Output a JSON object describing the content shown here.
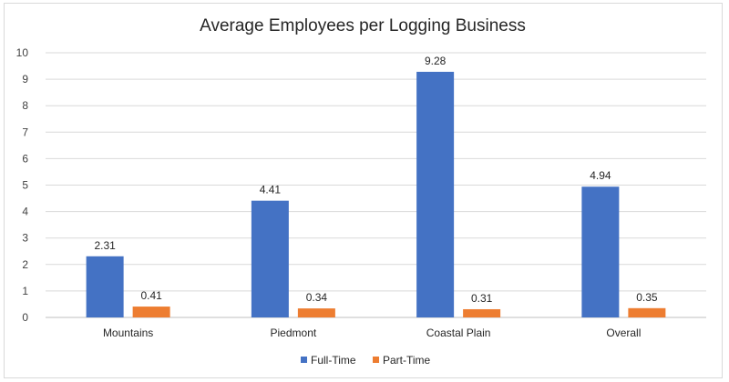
{
  "chart_data": {
    "type": "bar",
    "title": "Average Employees per Logging Business",
    "categories": [
      "Mountains",
      "Piedmont",
      "Coastal Plain",
      "Overall"
    ],
    "series": [
      {
        "name": "Full-Time",
        "color": "#4472C4",
        "values": [
          2.31,
          4.41,
          9.28,
          4.94
        ],
        "labels": [
          "2.31",
          "4.41",
          "9.28",
          "4.94"
        ]
      },
      {
        "name": "Part-Time",
        "color": "#ED7D31",
        "values": [
          0.41,
          0.34,
          0.31,
          0.35
        ],
        "labels": [
          "0.41",
          "0.34",
          "0.31",
          "0.35"
        ]
      }
    ],
    "xlabel": "",
    "ylabel": "",
    "ylim": [
      0,
      10
    ],
    "yticks": [
      "0",
      "1",
      "2",
      "3",
      "4",
      "5",
      "6",
      "7",
      "8",
      "9",
      "10"
    ],
    "grid": true,
    "legend_position": "bottom"
  }
}
